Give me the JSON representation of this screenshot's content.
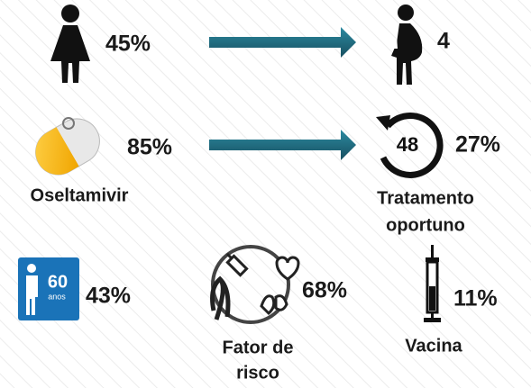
{
  "stats": {
    "women": "45%",
    "pregnant": "4",
    "oseltamivir": "85%",
    "timely": "27%",
    "elderly": "43%",
    "risk": "68%",
    "vaccine": "11%"
  },
  "labels": {
    "oseltamivir": "Oseltamivir",
    "timely": [
      "Tratamento",
      "oportuno"
    ],
    "risk": [
      "Fator de",
      "risco"
    ],
    "vaccine": "Vacina"
  },
  "icons": {
    "clock": "48",
    "age": "60",
    "age_unit": "anos"
  }
}
